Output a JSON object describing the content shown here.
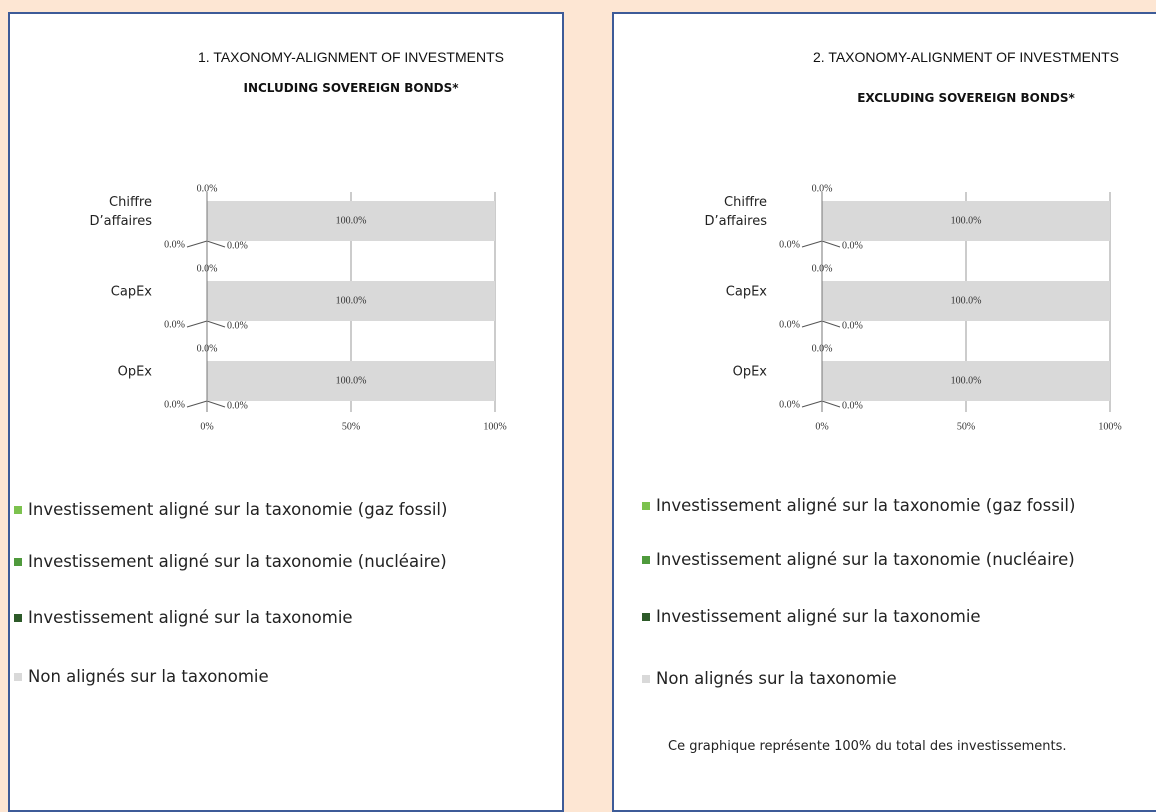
{
  "chart_data": [
    {
      "type": "stacked-bar",
      "title": "1. TAXONOMY-ALIGNMENT OF INVESTMENTS",
      "subtitle": "INCLUDING SOVEREIGN BONDS*",
      "categories": [
        "Chiffre D’affaires",
        "CapEx",
        "OpEx"
      ],
      "series": [
        {
          "name": "Investissement aligné sur la taxonomie (gaz fossil)",
          "color": "#7cc24e",
          "values": [
            0,
            0,
            0
          ],
          "value_labels": [
            "0.0%",
            "0.0%",
            "0.0%"
          ]
        },
        {
          "name": "Investissement aligné sur la taxonomie (nucléaire)",
          "color": "#4f9a3c",
          "values": [
            0,
            0,
            0
          ],
          "value_labels": [
            "0.0%",
            "0.0%",
            "0.0%"
          ]
        },
        {
          "name": "Investissement aligné sur la taxonomie",
          "color": "#2d5a29",
          "values": [
            0,
            0,
            0
          ],
          "value_labels": [
            "0.0%",
            "0.0%",
            "0.0%"
          ]
        },
        {
          "name": "Non alignés sur la taxonomie",
          "color": "#d9d9d9",
          "values": [
            100,
            100,
            100
          ],
          "value_labels": [
            "100.0%",
            "100.0%",
            "100.0%"
          ]
        }
      ],
      "xlim": [
        0,
        100
      ],
      "xticks": [
        {
          "value": 0,
          "label": "0%"
        },
        {
          "value": 50,
          "label": "50%"
        },
        {
          "value": 100,
          "label": "100%"
        }
      ],
      "grid": true
    },
    {
      "type": "stacked-bar",
      "title": "2. TAXONOMY-ALIGNMENT OF INVESTMENTS",
      "subtitle": "EXCLUDING SOVEREIGN BONDS*",
      "categories": [
        "Chiffre D’affaires",
        "CapEx",
        "OpEx"
      ],
      "series": [
        {
          "name": "Investissement aligné sur la taxonomie (gaz fossil)",
          "color": "#7cc24e",
          "values": [
            0,
            0,
            0
          ],
          "value_labels": [
            "0.0%",
            "0.0%",
            "0.0%"
          ]
        },
        {
          "name": "Investissement aligné sur la taxonomie (nucléaire)",
          "color": "#4f9a3c",
          "values": [
            0,
            0,
            0
          ],
          "value_labels": [
            "0.0%",
            "0.0%",
            "0.0%"
          ]
        },
        {
          "name": "Investissement aligné sur la taxonomie",
          "color": "#2d5a29",
          "values": [
            0,
            0,
            0
          ],
          "value_labels": [
            "0.0%",
            "0.0%",
            "0.0%"
          ]
        },
        {
          "name": "Non alignés sur la taxonomie",
          "color": "#d9d9d9",
          "values": [
            100,
            100,
            100
          ],
          "value_labels": [
            "100.0%",
            "100.0%",
            "100.0%"
          ]
        }
      ],
      "xlim": [
        0,
        100
      ],
      "xticks": [
        {
          "value": 0,
          "label": "0%"
        },
        {
          "value": 50,
          "label": "50%"
        },
        {
          "value": 100,
          "label": "100%"
        }
      ],
      "grid": true,
      "note": "Ce graphique représente 100% du total des investissements."
    }
  ]
}
